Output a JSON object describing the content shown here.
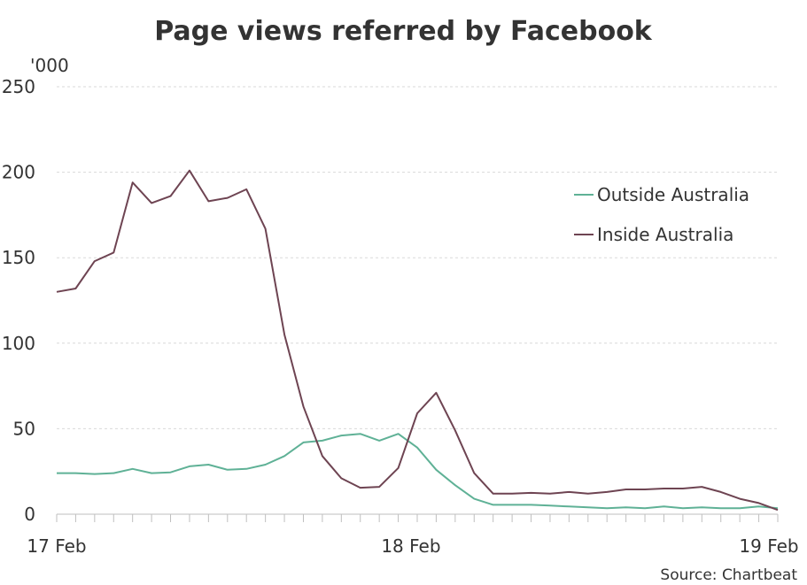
{
  "chart_data": {
    "type": "line",
    "title": "Page views referred by Facebook",
    "ylabel": "",
    "unit_label": "'000",
    "ylim": [
      0,
      250
    ],
    "yticks": [
      0,
      50,
      100,
      150,
      200,
      250
    ],
    "x": [
      0,
      1,
      2,
      3,
      4,
      5,
      6,
      7,
      8,
      9,
      10,
      11,
      12,
      13,
      14,
      15,
      16,
      17,
      18,
      19,
      20,
      21,
      22,
      23,
      24,
      25,
      26,
      27,
      28,
      29,
      30,
      31,
      32,
      33,
      34,
      35,
      36,
      37,
      38
    ],
    "xlim": [
      0,
      38
    ],
    "xtick_labels": [
      {
        "x": 0,
        "label": "17 Feb"
      },
      {
        "x": 18.67,
        "label": "18 Feb"
      },
      {
        "x": 38,
        "label": "19 Feb"
      }
    ],
    "grid": "horizontal-dashed",
    "legend_position": "right",
    "series": [
      {
        "name": "Outside Australia",
        "color": "#5fb196",
        "values": [
          24,
          24,
          23.5,
          24,
          26.5,
          24,
          24.5,
          28,
          29,
          26,
          26.5,
          29,
          34,
          42,
          43,
          46,
          47,
          43,
          47,
          39,
          26,
          17,
          9,
          5.5,
          5.5,
          5.5,
          5,
          4.5,
          4,
          3.5,
          4,
          3.5,
          4.5,
          3.5,
          4,
          3.5,
          3.5,
          4.5,
          3.5
        ]
      },
      {
        "name": "Inside Australia",
        "color": "#6e4452",
        "values": [
          130,
          132,
          148,
          153,
          194,
          182,
          186,
          201,
          183,
          185,
          190,
          167,
          105,
          63,
          34,
          21,
          15.5,
          16,
          27,
          59,
          71,
          49,
          24,
          12,
          12,
          12.5,
          12,
          13,
          12,
          13,
          14.5,
          14.5,
          15,
          15,
          16,
          13,
          9,
          6.5,
          2.5
        ]
      }
    ],
    "source": "Source: Chartbeat"
  }
}
